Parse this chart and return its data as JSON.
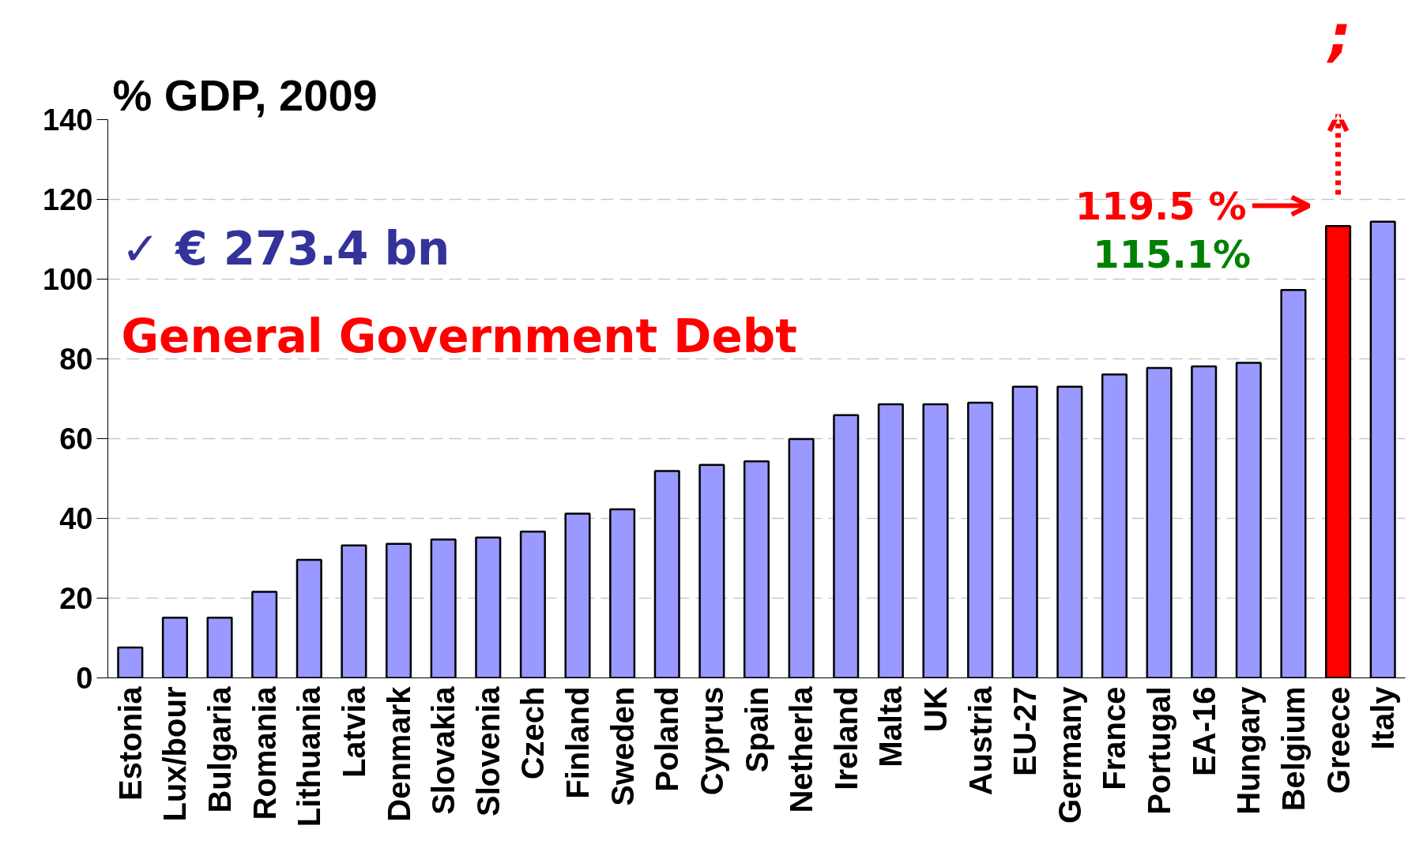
{
  "chart_data": {
    "type": "bar",
    "ylabel": "% GDP, 2009",
    "categories": [
      "Estonia",
      "Lux/bour",
      "Bulgaria",
      "Romania",
      "Lithuania",
      "Latvia",
      "Denmark",
      "Slovakia",
      "Slovenia",
      "Czech",
      "Finland",
      "Sweden",
      "Poland",
      "Cyprus",
      "Spain",
      "Netherla",
      "Ireland",
      "Malta",
      "UK",
      "Austria",
      "EU-27",
      "Germany",
      "France",
      "Portugal",
      "EA-16",
      "Hungary",
      "Belgium",
      "Greece",
      "Italy"
    ],
    "values": [
      7.6,
      15.1,
      15.1,
      21.6,
      29.6,
      33.2,
      33.6,
      34.7,
      35.2,
      36.7,
      41.2,
      42.3,
      51.9,
      53.4,
      54.3,
      59.9,
      65.9,
      68.6,
      68.6,
      69.0,
      73.0,
      73.0,
      76.1,
      77.7,
      78.1,
      79.0,
      97.3,
      113.3,
      114.4
    ],
    "colors": [
      "#9999ff",
      "#9999ff",
      "#9999ff",
      "#9999ff",
      "#9999ff",
      "#9999ff",
      "#9999ff",
      "#9999ff",
      "#9999ff",
      "#9999ff",
      "#9999ff",
      "#9999ff",
      "#9999ff",
      "#9999ff",
      "#9999ff",
      "#9999ff",
      "#9999ff",
      "#9999ff",
      "#9999ff",
      "#9999ff",
      "#9999ff",
      "#9999ff",
      "#9999ff",
      "#9999ff",
      "#9999ff",
      "#9999ff",
      "#9999ff",
      "#ff0000",
      "#9999ff"
    ],
    "ylim": [
      0,
      140
    ],
    "yticks": [
      0,
      20,
      40,
      60,
      80,
      100,
      120,
      140
    ],
    "grid": "y",
    "annotations": [
      "✓ € 273.4 bn",
      "General Government Debt",
      "119.5 %",
      "115.1%",
      ";"
    ]
  }
}
